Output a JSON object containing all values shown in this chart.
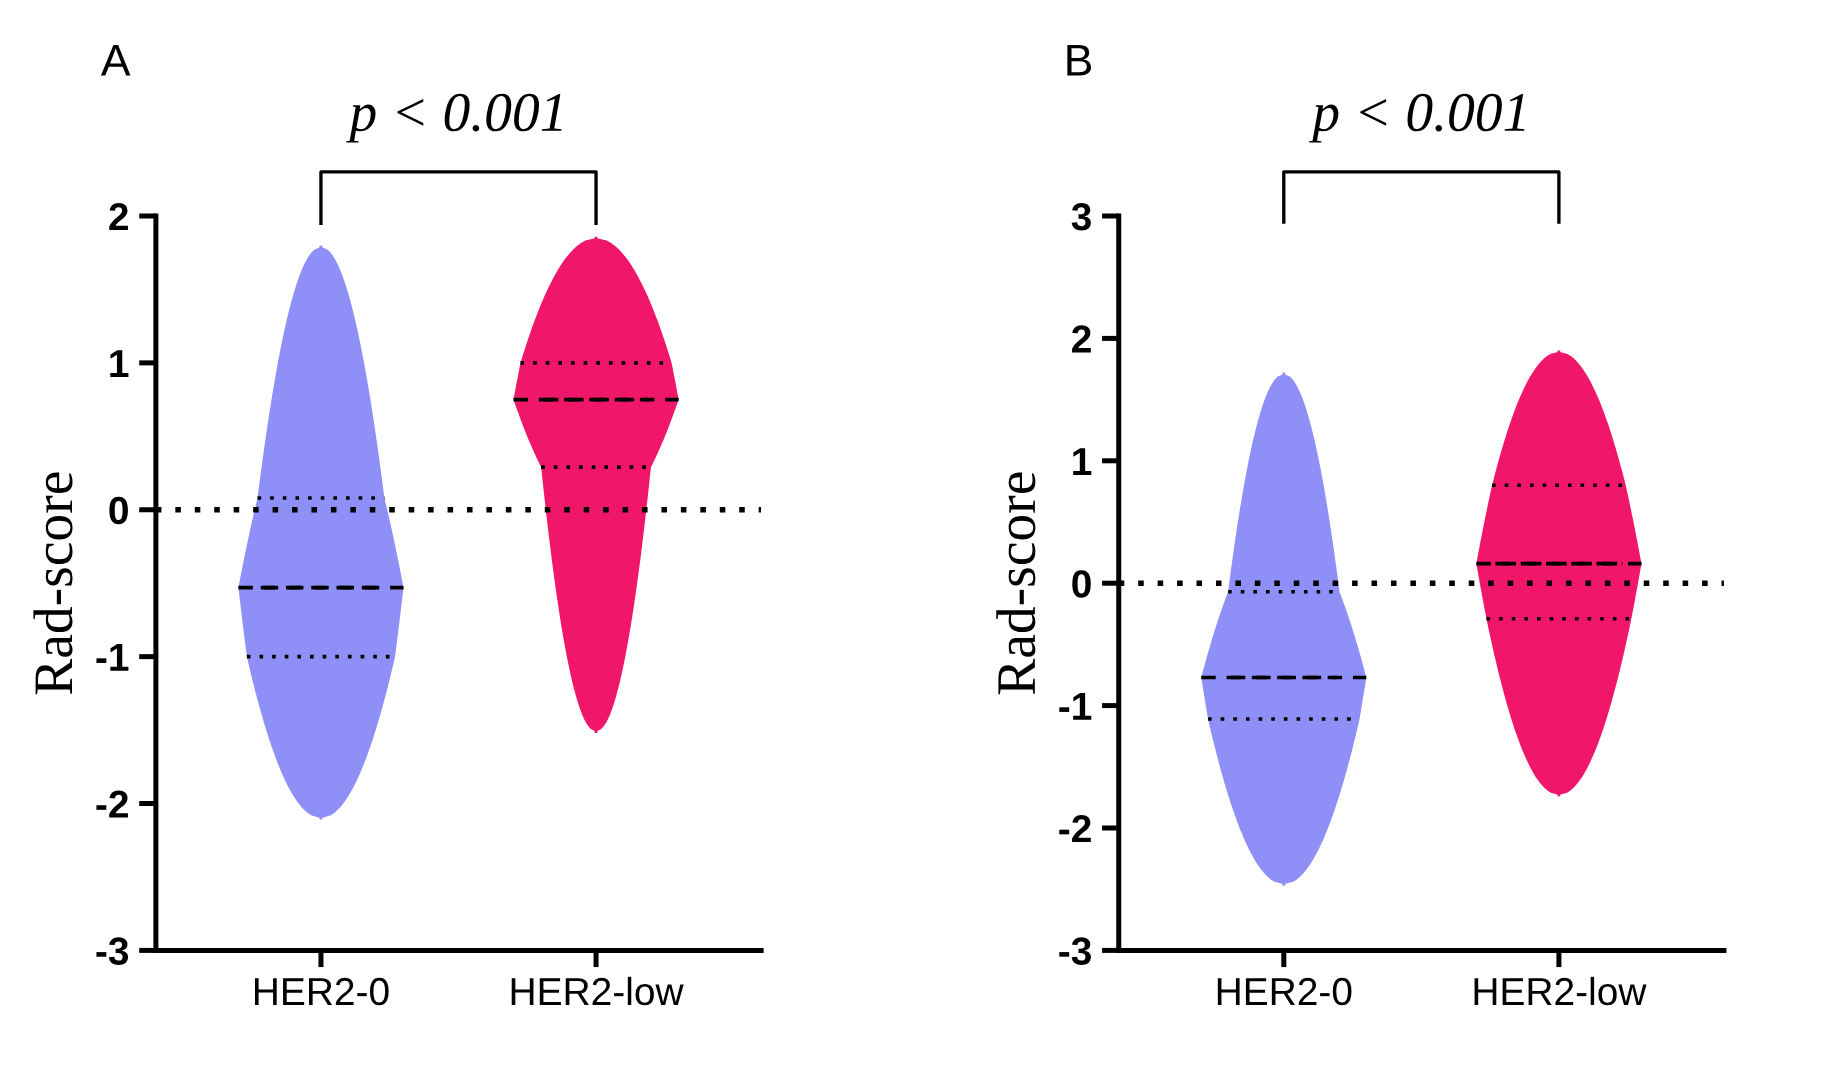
{
  "chart_data": [
    {
      "type": "box",
      "title": "A",
      "ylabel": "Rad-score",
      "categories": [
        "HER2-0",
        "HER2-low"
      ],
      "colors": [
        "#8f8ff8",
        "#f0176b"
      ],
      "boxes": [
        {
          "low": -2.1,
          "q1": -1.0,
          "median": -0.53,
          "q3": 0.08,
          "high": 1.79
        },
        {
          "low": -1.51,
          "q1": 0.29,
          "median": 0.75,
          "q3": 1.0,
          "high": 1.85
        }
      ],
      "ylim": [
        -3,
        2
      ],
      "yticks": [
        -3,
        -2,
        -1,
        0,
        1,
        2
      ],
      "grid": false,
      "ref_lines": [
        {
          "axis": "y",
          "value": 0,
          "color": "#000000",
          "line_style": "dotted"
        }
      ],
      "annotations": [
        "p < 0.001"
      ]
    },
    {
      "type": "box",
      "title": "B",
      "ylabel": "Rad-score",
      "categories": [
        "HER2-0",
        "HER2-low"
      ],
      "colors": [
        "#8f8ff8",
        "#f0176b"
      ],
      "boxes": [
        {
          "low": -2.46,
          "q1": -1.11,
          "median": -0.77,
          "q3": -0.07,
          "high": 1.71
        },
        {
          "low": -1.73,
          "q1": -0.29,
          "median": 0.16,
          "q3": 0.8,
          "high": 1.89
        }
      ],
      "ylim": [
        -3,
        3
      ],
      "yticks": [
        -3,
        -2,
        -1,
        0,
        1,
        2,
        3
      ],
      "grid": false,
      "ref_lines": [
        {
          "axis": "y",
          "value": 0,
          "color": "#000000",
          "line_style": "dotted"
        }
      ],
      "annotations": [
        "p < 0.001"
      ]
    }
  ]
}
